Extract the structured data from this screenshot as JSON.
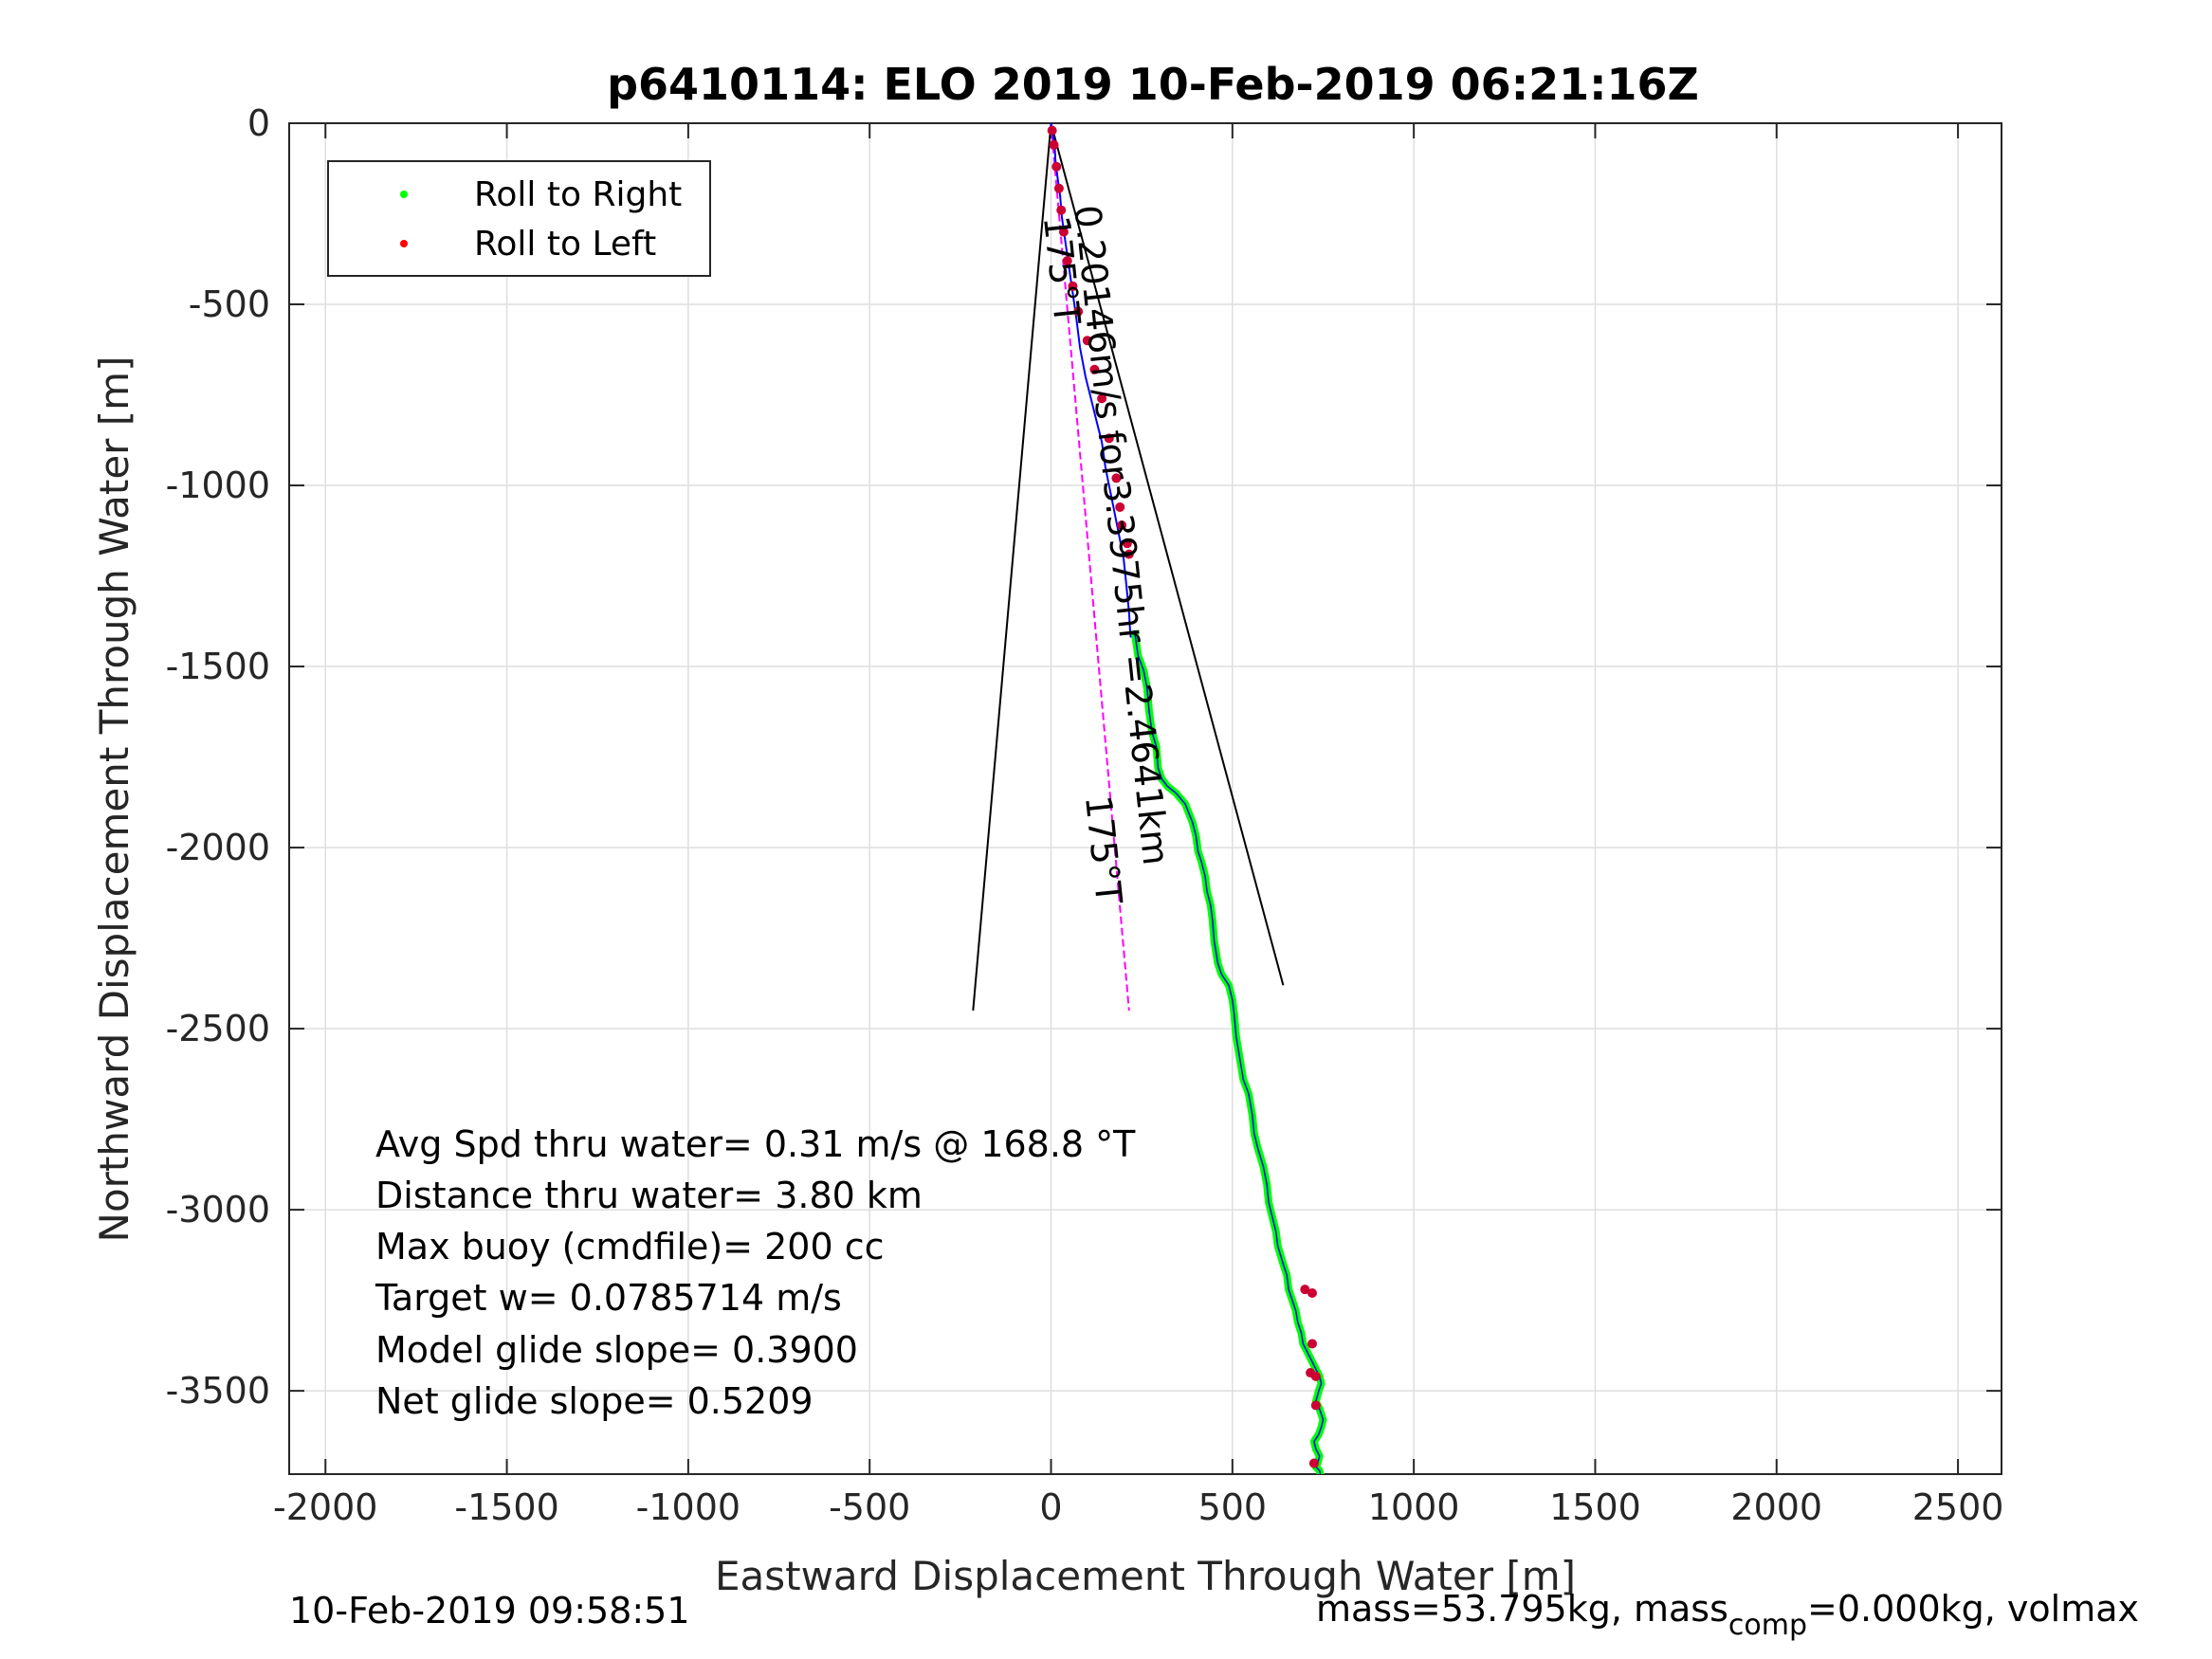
{
  "footer": {
    "timestamp": "10-Feb-2019 09:58:51",
    "mass_prefix": "mass=53.795kg, mass",
    "mass_sub": "comp",
    "mass_suffix": "=0.000kg, volmax"
  },
  "chart_data": {
    "type": "line",
    "title": "p6410114: ELO 2019 10-Feb-2019 06:21:16Z",
    "xlabel": "Eastward Displacement Through Water [m]",
    "ylabel": "Northward Displacement Through Water [m]",
    "xlim": [
      -2100,
      2620
    ],
    "ylim": [
      -3730,
      0
    ],
    "xticks": [
      -2000,
      -1500,
      -1000,
      -500,
      0,
      500,
      1000,
      1500,
      2000,
      2500
    ],
    "yticks": [
      0,
      -500,
      -1000,
      -1500,
      -2000,
      -2500,
      -3000,
      -3500
    ],
    "xtick_labels": [
      "-2000",
      "-1500",
      "-1000",
      "-500",
      "0",
      "500",
      "1000",
      "1500",
      "2000",
      "2500"
    ],
    "ytick_labels": [
      "0",
      "-500",
      "-1000",
      "-1500",
      "-2000",
      "-2500",
      "-3000",
      "-3500"
    ],
    "grid": true,
    "legend": {
      "placement": "top-left",
      "entries": [
        {
          "label": "Roll to Right",
          "color": "#00ff00"
        },
        {
          "label": "Roll to Left",
          "color": "#ff0000"
        }
      ]
    },
    "track": {
      "x": [
        0,
        5,
        10,
        12,
        18,
        25,
        30,
        40,
        50,
        60,
        70,
        80,
        95,
        110,
        125,
        140,
        150,
        160,
        170,
        180,
        190,
        200,
        205,
        210,
        215,
        218,
        220
      ],
      "y": [
        0,
        -30,
        -60,
        -100,
        -150,
        -200,
        -260,
        -330,
        -400,
        -470,
        -540,
        -620,
        -700,
        -760,
        -820,
        -880,
        -950,
        -1000,
        -1050,
        -1100,
        -1150,
        -1200,
        -1250,
        -1300,
        -1350,
        -1400,
        -1420
      ]
    },
    "roll_right_track": {
      "x": [
        230,
        240,
        255,
        265,
        270,
        278,
        290,
        295,
        305,
        320,
        345,
        370,
        390,
        400,
        405,
        415,
        425,
        430,
        440,
        445,
        450,
        460,
        470,
        490,
        500,
        505,
        510,
        520,
        530,
        545,
        555,
        560,
        570,
        585,
        595,
        600,
        610,
        620,
        625,
        640,
        650,
        655,
        665,
        675,
        680,
        690,
        695,
        705,
        710,
        720,
        730,
        740,
        745,
        738,
        730,
        740,
        750,
        745,
        738,
        725,
        730,
        740,
        735,
        730,
        740,
        745,
        740
      ],
      "y": [
        -1400,
        -1470,
        -1510,
        -1560,
        -1620,
        -1680,
        -1720,
        -1780,
        -1810,
        -1830,
        -1850,
        -1880,
        -1930,
        -1970,
        -2010,
        -2040,
        -2080,
        -2120,
        -2160,
        -2200,
        -2260,
        -2320,
        -2350,
        -2380,
        -2420,
        -2460,
        -2520,
        -2580,
        -2640,
        -2680,
        -2740,
        -2790,
        -2830,
        -2880,
        -2930,
        -2980,
        -3020,
        -3060,
        -3100,
        -3150,
        -3180,
        -3220,
        -3250,
        -3280,
        -3310,
        -3340,
        -3370,
        -3390,
        -3400,
        -3420,
        -3440,
        -3460,
        -3480,
        -3500,
        -3530,
        -3550,
        -3580,
        -3600,
        -3620,
        -3640,
        -3660,
        -3680,
        -3700,
        -3710,
        -3720,
        -3740,
        -3745
      ]
    },
    "roll_left_points": {
      "x": [
        3,
        8,
        15,
        22,
        28,
        35,
        45,
        60,
        75,
        100,
        120,
        140,
        160,
        180,
        190,
        195,
        210,
        215,
        700,
        720,
        720,
        715,
        730,
        730,
        725
      ],
      "y": [
        -20,
        -60,
        -120,
        -180,
        -240,
        -300,
        -380,
        -450,
        -520,
        -600,
        -680,
        -760,
        -870,
        -980,
        -1060,
        -1110,
        -1160,
        -1190,
        -3220,
        -3230,
        -3370,
        -3450,
        -3460,
        -3540,
        -3700
      ]
    },
    "heading_line": {
      "x": [
        0,
        215
      ],
      "y": [
        0,
        -2450
      ],
      "color": "#ff00ff"
    },
    "cone_lines": [
      {
        "x": [
          0,
          -215
        ],
        "y": [
          0,
          -2450
        ]
      },
      {
        "x": [
          0,
          640
        ],
        "y": [
          0,
          -2380
        ]
      }
    ],
    "rotated_labels": [
      {
        "text": "0.20146m/s for3.3975hr =2.4641km",
        "x": 65,
        "y": -230,
        "angle": 84
      },
      {
        "text": "175°T",
        "x": -20,
        "y": -260,
        "angle": 84
      },
      {
        "text": "175°T",
        "x": 95,
        "y": -1860,
        "angle": 84
      }
    ],
    "annotations": [
      "Avg Spd thru water=  0.31 m/s @ 168.8 °T",
      "Distance thru water=  3.80 km",
      "Max buoy (cmdfile)= 200 cc",
      "Target w= 0.0785714 m/s",
      "Model glide slope= 0.3900",
      "Net glide slope= 0.5209"
    ],
    "colors": {
      "track": "#0000ff",
      "roll_right": "#00ff00",
      "roll_left": "#cc0033",
      "heading": "#ff00ff",
      "cone": "#000000",
      "grid": "#dedede",
      "axes": "#262626"
    }
  }
}
